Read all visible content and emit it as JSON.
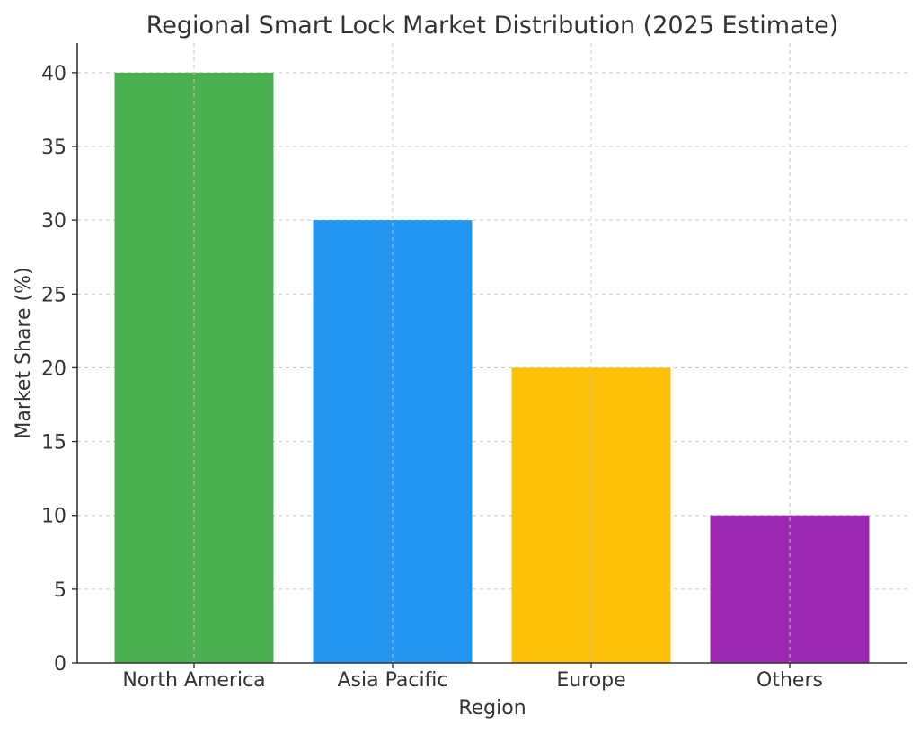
{
  "chart_data": {
    "type": "bar",
    "title": "Regional Smart Lock Market Distribution (2025 Estimate)",
    "xlabel": "Region",
    "ylabel": "Market Share (%)",
    "categories": [
      "North America",
      "Asia Pacific",
      "Europe",
      "Others"
    ],
    "values": [
      40,
      30,
      20,
      10
    ],
    "colors": [
      "#4caf50",
      "#2196f3",
      "#ffc107",
      "#9c27b0"
    ],
    "ylim": [
      0,
      42
    ],
    "yticks": [
      0,
      5,
      10,
      15,
      20,
      25,
      30,
      35,
      40
    ],
    "grid": true,
    "legend": "none"
  }
}
